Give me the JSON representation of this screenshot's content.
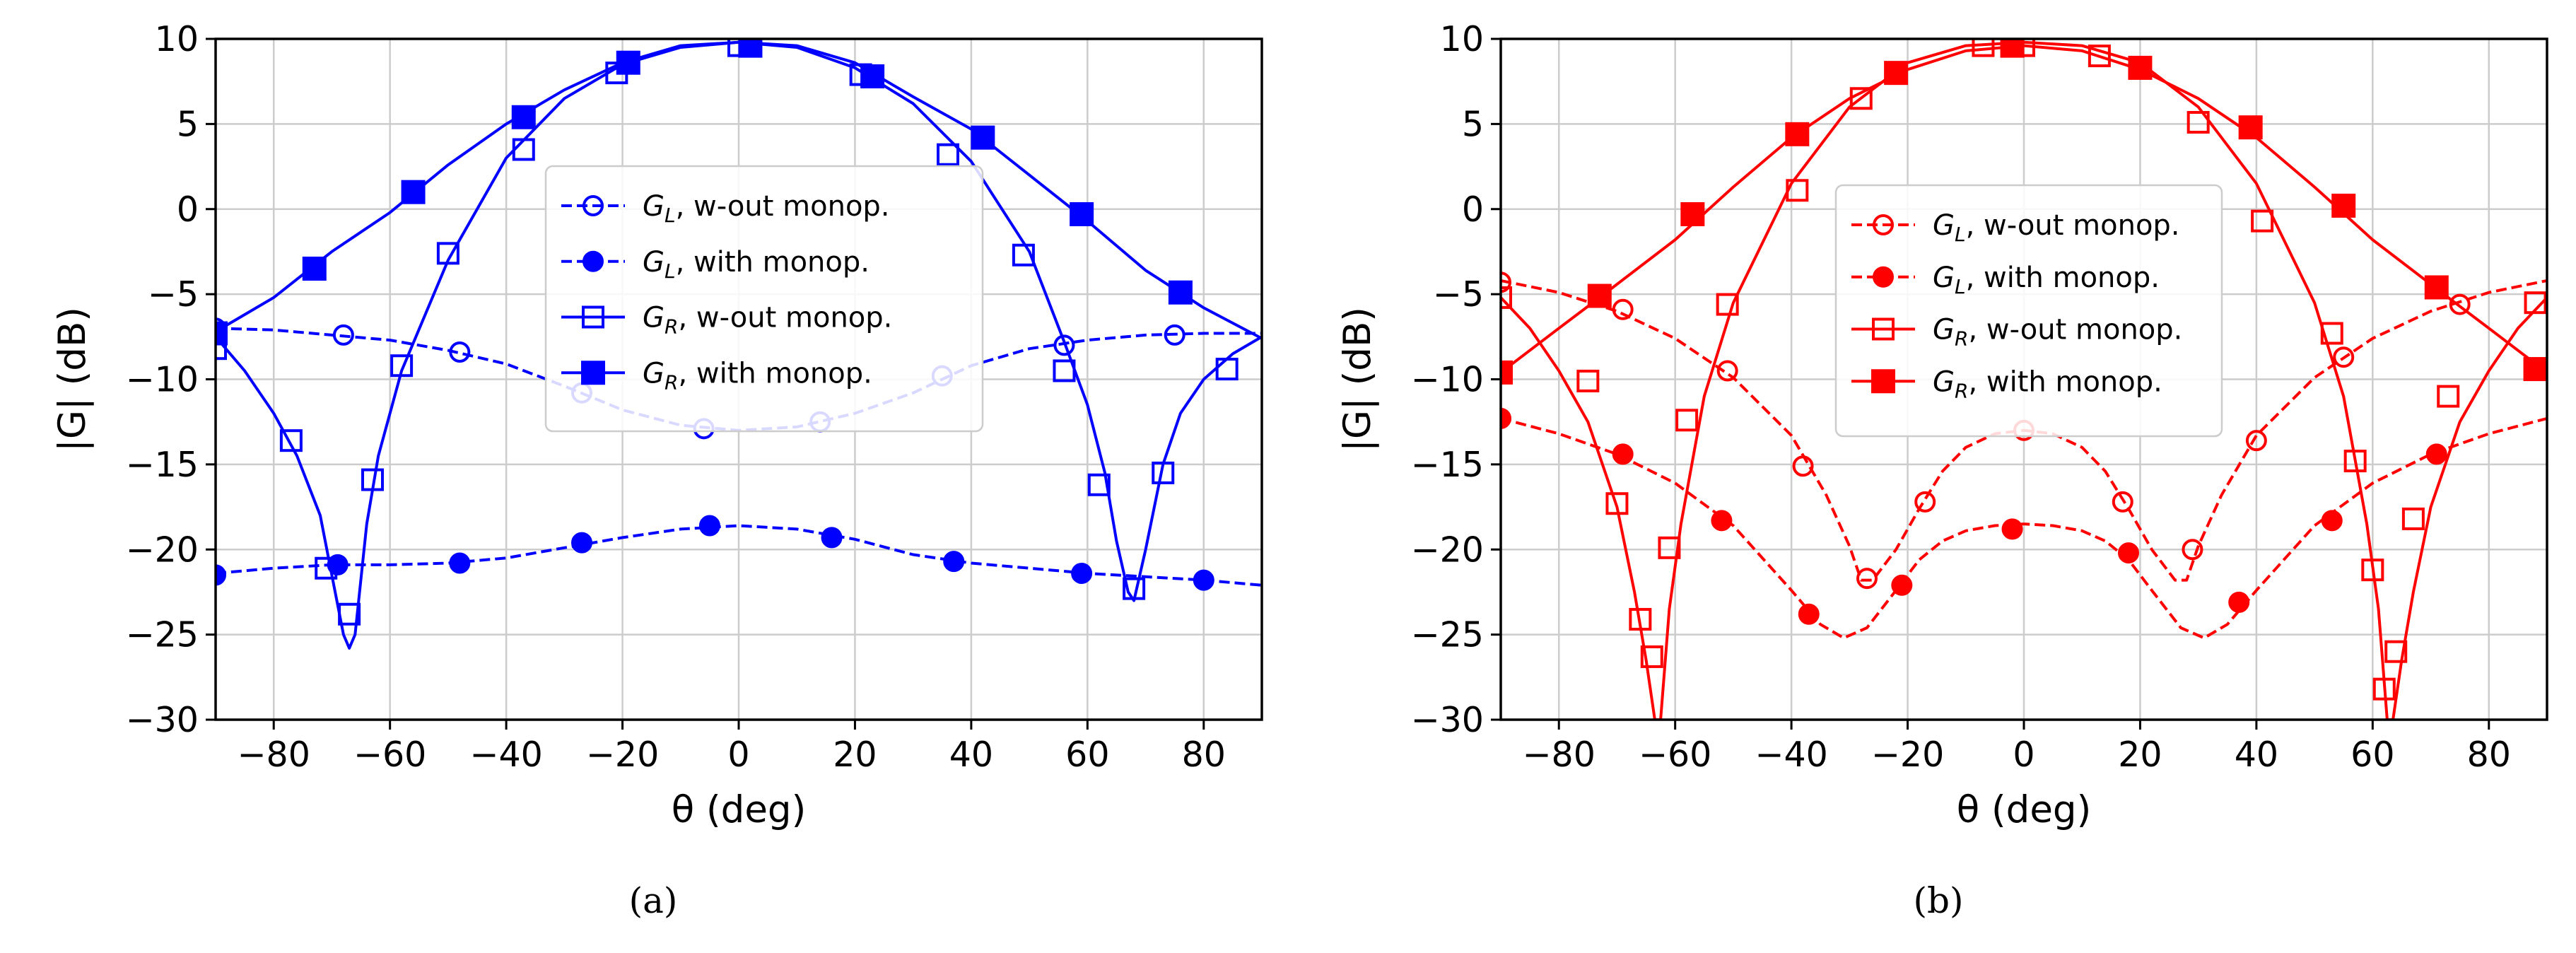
{
  "chart_data": [
    {
      "type": "line",
      "panel_label": "(a)",
      "color": "#0000ff",
      "xlabel": "θ (deg)",
      "ylabel": "|G| (dB)",
      "xlim": [
        -90,
        90
      ],
      "ylim": [
        -30,
        10
      ],
      "xticks": [
        -80,
        -60,
        -40,
        -20,
        0,
        20,
        40,
        60,
        80
      ],
      "yticks": [
        -30,
        -25,
        -20,
        -15,
        -10,
        -5,
        0,
        5,
        10
      ],
      "grid": true,
      "legend_position": "center",
      "legend": [
        {
          "main": "G",
          "sub": "L",
          "text": ", w-out monop."
        },
        {
          "main": "G",
          "sub": "L",
          "text": ", with monop."
        },
        {
          "main": "G",
          "sub": "R",
          "text": ", w-out monop."
        },
        {
          "main": "G",
          "sub": "R",
          "text": ", with monop."
        }
      ],
      "series": [
        {
          "name": "G_L, w-out monop.",
          "line": "dashed",
          "marker": "open-circle",
          "curve_x": [
            -90,
            -80,
            -70,
            -60,
            -50,
            -40,
            -30,
            -20,
            -10,
            0,
            10,
            20,
            30,
            40,
            50,
            60,
            70,
            80,
            90
          ],
          "curve_y": [
            -7.0,
            -7.1,
            -7.4,
            -7.7,
            -8.3,
            -9.1,
            -10.4,
            -11.8,
            -12.7,
            -13.0,
            -12.8,
            -12.0,
            -10.8,
            -9.2,
            -8.2,
            -7.7,
            -7.4,
            -7.3,
            -7.3
          ],
          "marker_x": [
            -90,
            -68,
            -48,
            -27,
            -6,
            14,
            35,
            56,
            75
          ],
          "marker_y": [
            -7.0,
            -7.4,
            -8.4,
            -10.8,
            -12.9,
            -12.5,
            -9.8,
            -8.0,
            -7.4
          ]
        },
        {
          "name": "G_L, with monop.",
          "line": "dashed",
          "marker": "filled-circle",
          "curve_x": [
            -90,
            -80,
            -70,
            -60,
            -50,
            -40,
            -30,
            -20,
            -10,
            0,
            10,
            20,
            30,
            40,
            50,
            60,
            70,
            80,
            90
          ],
          "curve_y": [
            -21.4,
            -21.1,
            -20.9,
            -20.9,
            -20.8,
            -20.5,
            -19.9,
            -19.3,
            -18.8,
            -18.6,
            -18.8,
            -19.4,
            -20.3,
            -20.8,
            -21.1,
            -21.4,
            -21.6,
            -21.8,
            -22.1
          ],
          "marker_x": [
            -90,
            -69,
            -48,
            -27,
            -5,
            16,
            37,
            59,
            80
          ],
          "marker_y": [
            -21.5,
            -20.9,
            -20.8,
            -19.6,
            -18.6,
            -19.3,
            -20.7,
            -21.4,
            -21.8
          ]
        },
        {
          "name": "G_R, w-out monop.",
          "line": "solid",
          "marker": "open-square",
          "curve_x": [
            -90,
            -85,
            -80,
            -76,
            -72,
            -70,
            -68,
            -67,
            -66,
            -64,
            -62,
            -58,
            -50,
            -40,
            -30,
            -20,
            -10,
            0,
            10,
            20,
            30,
            40,
            50,
            56,
            60,
            63,
            65,
            67,
            68,
            70,
            73,
            76,
            80,
            85,
            90
          ],
          "curve_y": [
            -7.5,
            -9.5,
            -12.0,
            -14.5,
            -18.0,
            -21.5,
            -25.0,
            -25.8,
            -25.0,
            -18.5,
            -14.5,
            -9.5,
            -3.0,
            3.0,
            6.5,
            8.5,
            9.5,
            9.8,
            9.5,
            8.3,
            6.2,
            2.8,
            -2.5,
            -7.8,
            -11.5,
            -15.5,
            -19.5,
            -22.5,
            -23.0,
            -20.0,
            -15.0,
            -12.0,
            -10.0,
            -8.5,
            -7.5
          ],
          "marker_x": [
            -90,
            -77,
            -71,
            -67,
            -63,
            -58,
            -50,
            -37,
            -21,
            0,
            21,
            36,
            49,
            56,
            62,
            68,
            73,
            84
          ],
          "marker_y": [
            -8.2,
            -13.6,
            -21.1,
            -23.8,
            -15.9,
            -9.2,
            -2.6,
            3.5,
            8.0,
            9.6,
            7.9,
            3.2,
            -2.7,
            -9.5,
            -16.2,
            -22.3,
            -15.5,
            -9.4
          ]
        },
        {
          "name": "G_R, with monop.",
          "line": "solid",
          "marker": "filled-square",
          "curve_x": [
            -90,
            -80,
            -70,
            -60,
            -50,
            -40,
            -30,
            -20,
            -10,
            0,
            10,
            20,
            30,
            40,
            50,
            60,
            70,
            80,
            90
          ],
          "curve_y": [
            -7.2,
            -5.2,
            -2.5,
            -0.2,
            2.6,
            5.0,
            7.0,
            8.6,
            9.6,
            9.8,
            9.6,
            8.6,
            6.6,
            4.7,
            2.0,
            -0.7,
            -3.6,
            -5.8,
            -7.6
          ],
          "marker_x": [
            -90,
            -73,
            -56,
            -37,
            -19,
            2,
            23,
            42,
            59,
            76
          ],
          "marker_y": [
            -7.3,
            -3.5,
            1.0,
            5.4,
            8.6,
            9.6,
            7.8,
            4.2,
            -0.3,
            -4.9
          ]
        }
      ]
    },
    {
      "type": "line",
      "panel_label": "(b)",
      "color": "#ff0000",
      "xlabel": "θ (deg)",
      "ylabel": "|G| (dB)",
      "xlim": [
        -90,
        90
      ],
      "ylim": [
        -30,
        10
      ],
      "xticks": [
        -80,
        -60,
        -40,
        -20,
        0,
        20,
        40,
        60,
        80
      ],
      "yticks": [
        -30,
        -25,
        -20,
        -15,
        -10,
        -5,
        0,
        5,
        10
      ],
      "grid": true,
      "legend_position": "center",
      "legend": [
        {
          "main": "G",
          "sub": "L",
          "text": ", w-out monop."
        },
        {
          "main": "G",
          "sub": "L",
          "text": ", with monop."
        },
        {
          "main": "G",
          "sub": "R",
          "text": ", w-out monop."
        },
        {
          "main": "G",
          "sub": "R",
          "text": ", with monop."
        }
      ],
      "series": [
        {
          "name": "G_L, w-out monop.",
          "line": "dashed",
          "marker": "open-circle",
          "curve_x": [
            -90,
            -80,
            -70,
            -60,
            -50,
            -40,
            -34,
            -30,
            -28,
            -26,
            -22,
            -18,
            -14,
            -10,
            -5,
            0,
            5,
            10,
            14,
            18,
            22,
            26,
            28,
            30,
            34,
            40,
            50,
            60,
            70,
            80,
            90
          ],
          "curve_y": [
            -4.2,
            -4.9,
            -6.0,
            -7.6,
            -9.9,
            -13.3,
            -16.8,
            -19.8,
            -21.8,
            -21.8,
            -20.0,
            -17.6,
            -15.4,
            -14.0,
            -13.2,
            -13.0,
            -13.2,
            -14.0,
            -15.4,
            -17.6,
            -20.0,
            -21.8,
            -21.8,
            -19.8,
            -16.8,
            -13.3,
            -9.9,
            -7.6,
            -6.0,
            -4.9,
            -4.2
          ],
          "marker_x": [
            -90,
            -69,
            -51,
            -38,
            -27,
            -17,
            0,
            17,
            29,
            40,
            55,
            75
          ],
          "marker_y": [
            -4.3,
            -5.9,
            -9.5,
            -15.1,
            -21.7,
            -17.2,
            -13.0,
            -17.2,
            -20.0,
            -13.6,
            -8.7,
            -5.6
          ]
        },
        {
          "name": "G_L, with monop.",
          "line": "dashed",
          "marker": "filled-circle",
          "curve_x": [
            -90,
            -80,
            -70,
            -60,
            -50,
            -40,
            -35,
            -31,
            -27,
            -22,
            -18,
            -14,
            -10,
            -5,
            0,
            5,
            10,
            14,
            18,
            22,
            27,
            31,
            35,
            40,
            50,
            60,
            70,
            80,
            90
          ],
          "curve_y": [
            -12.3,
            -13.2,
            -14.4,
            -16.1,
            -18.6,
            -22.4,
            -24.4,
            -25.2,
            -24.6,
            -22.4,
            -20.6,
            -19.5,
            -18.9,
            -18.6,
            -18.5,
            -18.6,
            -18.9,
            -19.5,
            -20.6,
            -22.4,
            -24.6,
            -25.2,
            -24.4,
            -22.4,
            -18.6,
            -16.1,
            -14.4,
            -13.2,
            -12.3
          ],
          "marker_x": [
            -90,
            -69,
            -52,
            -37,
            -21,
            -2,
            18,
            37,
            53,
            71
          ],
          "marker_y": [
            -12.3,
            -14.4,
            -18.3,
            -23.8,
            -22.1,
            -18.8,
            -20.2,
            -23.1,
            -18.3,
            -14.4
          ]
        },
        {
          "name": "G_R, w-out monop.",
          "line": "solid",
          "marker": "open-square",
          "curve_x": [
            -90,
            -85,
            -80,
            -75,
            -70,
            -67,
            -65,
            -63.5,
            -62.5,
            -61,
            -59,
            -55,
            -50,
            -40,
            -30,
            -20,
            -10,
            0,
            10,
            20,
            30,
            40,
            50,
            55,
            59,
            61,
            62.5,
            63.5,
            65,
            67,
            70,
            75,
            80,
            85,
            90
          ],
          "curve_y": [
            -5.2,
            -7.0,
            -9.5,
            -12.5,
            -17.5,
            -22.5,
            -26.5,
            -30.0,
            -30.0,
            -23.5,
            -18.5,
            -11.0,
            -5.5,
            1.5,
            6.0,
            8.6,
            9.6,
            9.8,
            9.6,
            8.6,
            6.0,
            1.5,
            -5.5,
            -11.0,
            -18.5,
            -23.5,
            -30.0,
            -30.0,
            -26.5,
            -22.5,
            -17.5,
            -12.5,
            -9.5,
            -7.0,
            -5.2
          ],
          "marker_x": [
            -90,
            -75,
            -70,
            -66,
            -64,
            -61,
            -58,
            -51,
            -39,
            -28,
            -7,
            0,
            13,
            30,
            41,
            53,
            57,
            60,
            62,
            64,
            67,
            73,
            88
          ],
          "marker_y": [
            -5.2,
            -10.1,
            -17.3,
            -24.1,
            -26.3,
            -19.9,
            -12.4,
            -5.6,
            1.1,
            6.5,
            9.6,
            9.6,
            9.0,
            5.1,
            -0.7,
            -7.3,
            -14.8,
            -21.2,
            -28.2,
            -26.0,
            -18.2,
            -11.0,
            -5.5
          ]
        },
        {
          "name": "G_R, with monop.",
          "line": "solid",
          "marker": "filled-square",
          "curve_x": [
            -90,
            -80,
            -73,
            -60,
            -50,
            -40,
            -30,
            -20,
            -10,
            0,
            10,
            20,
            30,
            40,
            50,
            60,
            73,
            80,
            90
          ],
          "curve_y": [
            -9.6,
            -7.0,
            -5.2,
            -1.8,
            1.3,
            4.2,
            6.5,
            8.2,
            9.3,
            9.6,
            9.3,
            8.2,
            6.5,
            4.2,
            1.3,
            -1.8,
            -5.2,
            -7.0,
            -9.6
          ],
          "marker_x": [
            -90,
            -73,
            -57,
            -39,
            -22,
            -2,
            20,
            39,
            55,
            71,
            88
          ],
          "marker_y": [
            -9.6,
            -5.1,
            -0.3,
            4.4,
            8.0,
            9.6,
            8.3,
            4.8,
            0.2,
            -4.6,
            -9.4
          ]
        }
      ]
    }
  ]
}
